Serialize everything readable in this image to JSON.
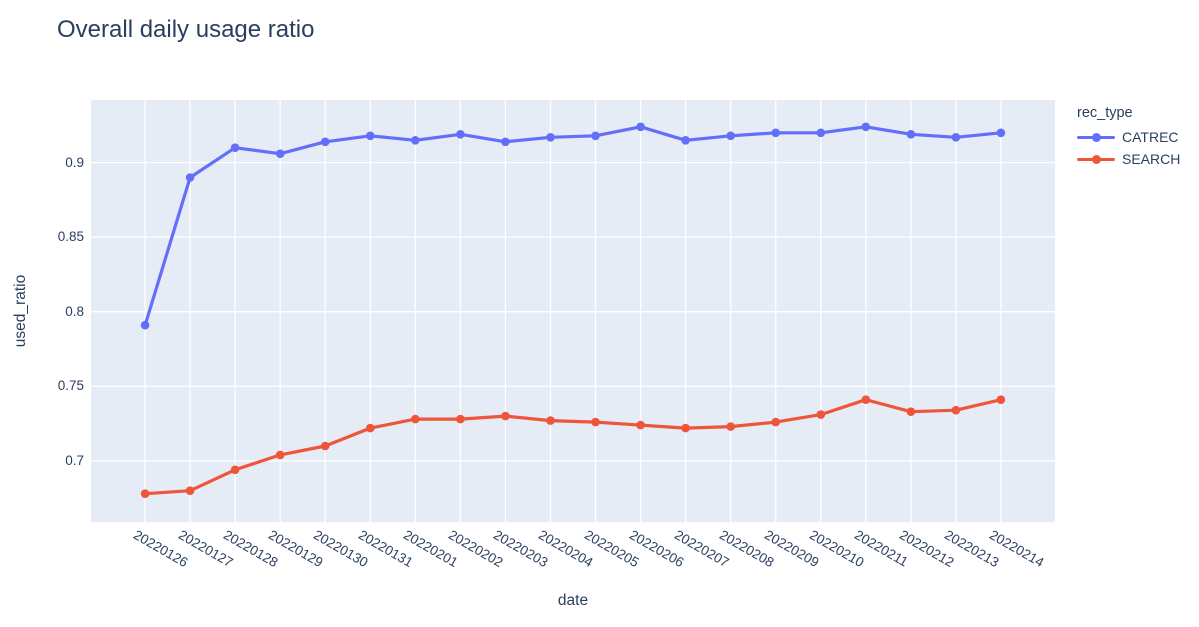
{
  "title": "Overall daily usage ratio",
  "colors": {
    "font": "#2a3f5f",
    "plot_background": "#e5ecf6",
    "gridline": "#ffffff",
    "catrec": "#636efa",
    "search": "#ef553b"
  },
  "legend": {
    "title": "rec_type",
    "entries": [
      {
        "label": "CATREC",
        "color": "#636efa"
      },
      {
        "label": "SEARCH",
        "color": "#ef553b"
      }
    ]
  },
  "chart_data": {
    "type": "line",
    "title": "Overall daily usage ratio",
    "xlabel": "date",
    "ylabel": "used_ratio",
    "grid": true,
    "legend_position": "right",
    "x_tick_angle": 30,
    "categories": [
      "20220126",
      "20220127",
      "20220128",
      "20220129",
      "20220130",
      "20220131",
      "20220201",
      "20220202",
      "20220203",
      "20220204",
      "20220205",
      "20220206",
      "20220207",
      "20220208",
      "20220209",
      "20220210",
      "20220211",
      "20220212",
      "20220213",
      "20220214"
    ],
    "series": [
      {
        "name": "CATREC",
        "color": "#636efa",
        "values": [
          0.791,
          0.89,
          0.91,
          0.906,
          0.914,
          0.918,
          0.915,
          0.919,
          0.914,
          0.917,
          0.918,
          0.924,
          0.915,
          0.918,
          0.92,
          0.92,
          0.924,
          0.919,
          0.917,
          0.92
        ]
      },
      {
        "name": "SEARCH",
        "color": "#ef553b",
        "values": [
          0.678,
          0.68,
          0.694,
          0.704,
          0.71,
          0.722,
          0.728,
          0.728,
          0.73,
          0.727,
          0.726,
          0.724,
          0.722,
          0.723,
          0.726,
          0.731,
          0.741,
          0.733,
          0.734,
          0.741
        ]
      }
    ],
    "ytick_labels": [
      "0.7",
      "0.75",
      "0.8",
      "0.85",
      "0.9"
    ],
    "ytick_values": [
      0.7,
      0.75,
      0.8,
      0.85,
      0.9
    ],
    "ylim": [
      0.659,
      0.942
    ],
    "x_pad_categories": 1.2
  }
}
